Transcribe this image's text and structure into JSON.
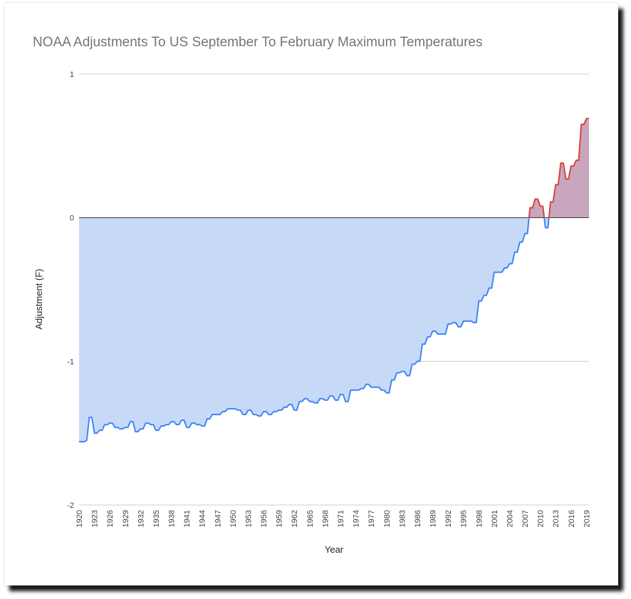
{
  "chart_data": {
    "type": "area",
    "title": "NOAA Adjustments To US September To February Maximum Temperatures",
    "xlabel": "Year",
    "ylabel": "Adjustment (F)",
    "ylim": [
      -2,
      1
    ],
    "yticks": [
      "1",
      "0",
      "-1",
      "-2"
    ],
    "xticks": [
      "1920",
      "1923",
      "1926",
      "1929",
      "1932",
      "1935",
      "1938",
      "1941",
      "1944",
      "1947",
      "1950",
      "1953",
      "1956",
      "1959",
      "1962",
      "1965",
      "1968",
      "1971",
      "1974",
      "1977",
      "1980",
      "1983",
      "1986",
      "1989",
      "1992",
      "1995",
      "1998",
      "2001",
      "2004",
      "2007",
      "2010",
      "2013",
      "2016",
      "2019"
    ],
    "xlim": [
      1920,
      2019.5
    ],
    "grid": true,
    "legend": "none",
    "colors": {
      "negative_line": "#4285f4",
      "negative_fill": "#c6daf8",
      "positive_line": "#db4437",
      "positive_fill": "#c8a6bd",
      "zero_line": "#333333",
      "grid": "#cccccc"
    },
    "x": [
      1920.0,
      1920.5,
      1921.0,
      1921.5,
      1922.0,
      1922.5,
      1923.0,
      1923.5,
      1924.0,
      1924.5,
      1925.0,
      1925.5,
      1926.0,
      1926.5,
      1927.0,
      1927.5,
      1928.0,
      1928.5,
      1929.0,
      1929.5,
      1930.0,
      1930.5,
      1931.0,
      1931.5,
      1932.0,
      1932.5,
      1933.0,
      1933.5,
      1934.0,
      1934.5,
      1935.0,
      1935.5,
      1936.0,
      1936.5,
      1937.0,
      1937.5,
      1938.0,
      1938.5,
      1939.0,
      1939.5,
      1940.0,
      1940.5,
      1941.0,
      1941.5,
      1942.0,
      1942.5,
      1943.0,
      1943.5,
      1944.0,
      1944.5,
      1945.0,
      1945.5,
      1946.0,
      1946.5,
      1947.0,
      1947.5,
      1948.0,
      1948.5,
      1949.0,
      1949.5,
      1950.0,
      1950.5,
      1951.0,
      1951.5,
      1952.0,
      1952.5,
      1953.0,
      1953.5,
      1954.0,
      1954.5,
      1955.0,
      1955.5,
      1956.0,
      1956.5,
      1957.0,
      1957.5,
      1958.0,
      1958.5,
      1959.0,
      1959.5,
      1960.0,
      1960.5,
      1961.0,
      1961.5,
      1962.0,
      1962.5,
      1963.0,
      1963.5,
      1964.0,
      1964.5,
      1965.0,
      1965.5,
      1966.0,
      1966.5,
      1967.0,
      1967.5,
      1968.0,
      1968.5,
      1969.0,
      1969.5,
      1970.0,
      1970.5,
      1971.0,
      1971.5,
      1972.0,
      1972.5,
      1973.0,
      1973.5,
      1974.0,
      1974.5,
      1975.0,
      1975.5,
      1976.0,
      1976.5,
      1977.0,
      1977.5,
      1978.0,
      1978.5,
      1979.0,
      1979.5,
      1980.0,
      1980.5,
      1981.0,
      1981.5,
      1982.0,
      1982.5,
      1983.0,
      1983.5,
      1984.0,
      1984.5,
      1985.0,
      1985.5,
      1986.0,
      1986.5,
      1987.0,
      1987.5,
      1988.0,
      1988.5,
      1989.0,
      1989.5,
      1990.0,
      1990.5,
      1991.0,
      1991.5,
      1992.0,
      1992.5,
      1993.0,
      1993.5,
      1994.0,
      1994.5,
      1995.0,
      1995.5,
      1996.0,
      1996.5,
      1997.0,
      1997.5,
      1998.0,
      1998.5,
      1999.0,
      1999.5,
      2000.0,
      2000.5,
      2001.0,
      2001.5,
      2002.0,
      2002.5,
      2003.0,
      2003.5,
      2004.0,
      2004.5,
      2005.0,
      2005.5,
      2006.0,
      2006.5,
      2007.0,
      2007.5,
      2008.0,
      2008.5,
      2009.0,
      2009.5,
      2010.0,
      2010.5,
      2011.0,
      2011.5,
      2012.0,
      2012.5,
      2013.0,
      2013.5,
      2014.0,
      2014.5,
      2015.0,
      2015.5,
      2016.0,
      2016.5,
      2017.0,
      2017.5,
      2018.0,
      2018.5,
      2019.0,
      2019.5
    ],
    "values": [
      -1.56,
      -1.56,
      -1.56,
      -1.55,
      -1.39,
      -1.39,
      -1.5,
      -1.5,
      -1.48,
      -1.48,
      -1.44,
      -1.44,
      -1.43,
      -1.43,
      -1.46,
      -1.46,
      -1.47,
      -1.47,
      -1.46,
      -1.46,
      -1.42,
      -1.42,
      -1.49,
      -1.49,
      -1.47,
      -1.47,
      -1.43,
      -1.43,
      -1.44,
      -1.44,
      -1.48,
      -1.48,
      -1.45,
      -1.45,
      -1.44,
      -1.44,
      -1.42,
      -1.42,
      -1.44,
      -1.44,
      -1.41,
      -1.41,
      -1.46,
      -1.46,
      -1.43,
      -1.43,
      -1.44,
      -1.44,
      -1.45,
      -1.45,
      -1.4,
      -1.4,
      -1.37,
      -1.37,
      -1.37,
      -1.37,
      -1.35,
      -1.35,
      -1.33,
      -1.33,
      -1.33,
      -1.33,
      -1.34,
      -1.34,
      -1.37,
      -1.37,
      -1.34,
      -1.34,
      -1.37,
      -1.37,
      -1.38,
      -1.38,
      -1.35,
      -1.35,
      -1.37,
      -1.37,
      -1.35,
      -1.35,
      -1.34,
      -1.34,
      -1.32,
      -1.32,
      -1.3,
      -1.3,
      -1.34,
      -1.34,
      -1.28,
      -1.28,
      -1.26,
      -1.26,
      -1.28,
      -1.28,
      -1.29,
      -1.29,
      -1.26,
      -1.26,
      -1.27,
      -1.27,
      -1.24,
      -1.24,
      -1.27,
      -1.27,
      -1.23,
      -1.23,
      -1.28,
      -1.28,
      -1.2,
      -1.2,
      -1.2,
      -1.2,
      -1.19,
      -1.19,
      -1.16,
      -1.16,
      -1.18,
      -1.18,
      -1.18,
      -1.18,
      -1.2,
      -1.2,
      -1.22,
      -1.22,
      -1.13,
      -1.13,
      -1.08,
      -1.08,
      -1.07,
      -1.07,
      -1.1,
      -1.1,
      -1.02,
      -1.02,
      -1.0,
      -1.0,
      -0.88,
      -0.88,
      -0.83,
      -0.83,
      -0.79,
      -0.79,
      -0.81,
      -0.81,
      -0.81,
      -0.81,
      -0.74,
      -0.74,
      -0.73,
      -0.73,
      -0.76,
      -0.76,
      -0.72,
      -0.72,
      -0.72,
      -0.72,
      -0.73,
      -0.73,
      -0.58,
      -0.58,
      -0.54,
      -0.54,
      -0.49,
      -0.49,
      -0.38,
      -0.38,
      -0.38,
      -0.38,
      -0.35,
      -0.35,
      -0.32,
      -0.32,
      -0.24,
      -0.24,
      -0.17,
      -0.17,
      -0.11,
      -0.11,
      0.07,
      0.07,
      0.13,
      0.13,
      0.08,
      0.08,
      -0.07,
      -0.07,
      0.11,
      0.11,
      0.23,
      0.23,
      0.38,
      0.38,
      0.27,
      0.27,
      0.36,
      0.36,
      0.4,
      0.4,
      0.65,
      0.65,
      0.69,
      0.69
    ]
  }
}
